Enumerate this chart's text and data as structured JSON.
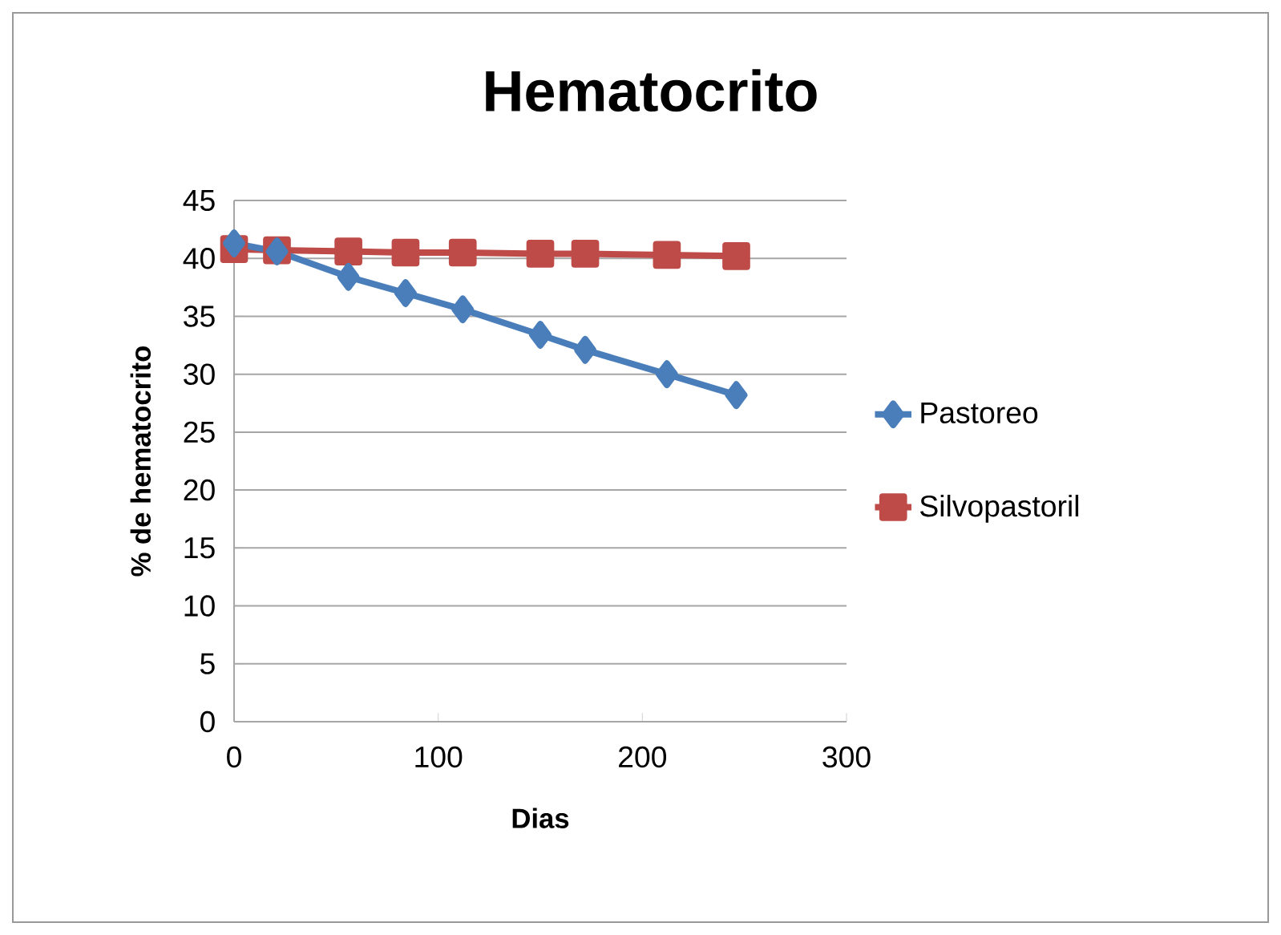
{
  "chart_data": {
    "type": "line",
    "title": "Hematocrito",
    "xlabel": "Dias",
    "ylabel": "% de hematocrito",
    "xlim": [
      0,
      300
    ],
    "xticks": [
      0,
      100,
      200,
      300
    ],
    "ylim": [
      0,
      45
    ],
    "yticks": [
      0,
      5,
      10,
      15,
      20,
      25,
      30,
      35,
      40,
      45
    ],
    "grid": "y",
    "legend": "right",
    "line_style": "solid",
    "series": [
      {
        "name": "Pastoreo",
        "color": "#4a7ebb",
        "marker": "diamond",
        "x": [
          0,
          21,
          56,
          84,
          112,
          150,
          172,
          212,
          246
        ],
        "values": [
          41.3,
          40.6,
          38.4,
          37.0,
          35.6,
          33.4,
          32.1,
          30.0,
          28.2
        ]
      },
      {
        "name": "Silvopastoril",
        "color": "#be4b48",
        "marker": "square",
        "x": [
          0,
          21,
          56,
          84,
          112,
          150,
          172,
          212,
          246
        ],
        "values": [
          40.8,
          40.7,
          40.6,
          40.5,
          40.5,
          40.4,
          40.4,
          40.3,
          40.2
        ]
      }
    ]
  }
}
